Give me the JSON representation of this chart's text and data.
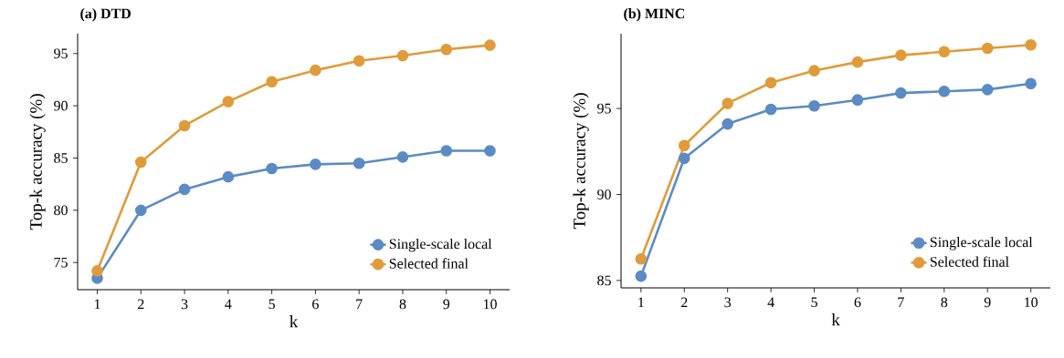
{
  "chart_data": [
    {
      "type": "line",
      "title": "(a) DTD",
      "xlabel": "k",
      "ylabel": "Top-k accuracy (%)",
      "x": [
        1,
        2,
        3,
        4,
        5,
        6,
        7,
        8,
        9,
        10
      ],
      "series": [
        {
          "name": "Single-scale local",
          "color": "#5b8bc4",
          "values": [
            73.5,
            80.0,
            82.0,
            83.2,
            84.0,
            84.4,
            84.5,
            85.1,
            85.7,
            85.7
          ]
        },
        {
          "name": "Selected final",
          "color": "#e09b3a",
          "values": [
            74.2,
            84.6,
            88.1,
            90.4,
            92.3,
            93.4,
            94.3,
            94.8,
            95.4,
            95.8
          ]
        }
      ],
      "xlim": [
        0.55,
        10.45
      ],
      "ylim": [
        72.4,
        96.9
      ],
      "xticks": [
        1,
        2,
        3,
        4,
        5,
        6,
        7,
        8,
        9,
        10
      ],
      "yticks": [
        75,
        80,
        85,
        90,
        95
      ],
      "legend": "bottom right",
      "marker": "circle",
      "line_style": "solid"
    },
    {
      "type": "line",
      "title": "(b) MINC",
      "xlabel": "k",
      "ylabel": "Top-k accuracy (%)",
      "x": [
        1,
        2,
        3,
        4,
        5,
        6,
        7,
        8,
        9,
        10
      ],
      "series": [
        {
          "name": "Single-scale local",
          "color": "#5b8bc4",
          "values": [
            85.25,
            92.1,
            94.1,
            94.95,
            95.15,
            95.5,
            95.9,
            96.0,
            96.1,
            96.45
          ]
        },
        {
          "name": "Selected final",
          "color": "#e09b3a",
          "values": [
            86.25,
            92.85,
            95.3,
            96.5,
            97.2,
            97.7,
            98.1,
            98.3,
            98.5,
            98.7
          ]
        }
      ],
      "xlim": [
        0.54,
        10.45
      ],
      "ylim": [
        84.57,
        99.35
      ],
      "xticks": [
        1,
        2,
        3,
        4,
        5,
        6,
        7,
        8,
        9,
        10
      ],
      "yticks": [
        85,
        90,
        95
      ],
      "legend": "bottom right",
      "marker": "circle",
      "line_style": "solid"
    }
  ]
}
